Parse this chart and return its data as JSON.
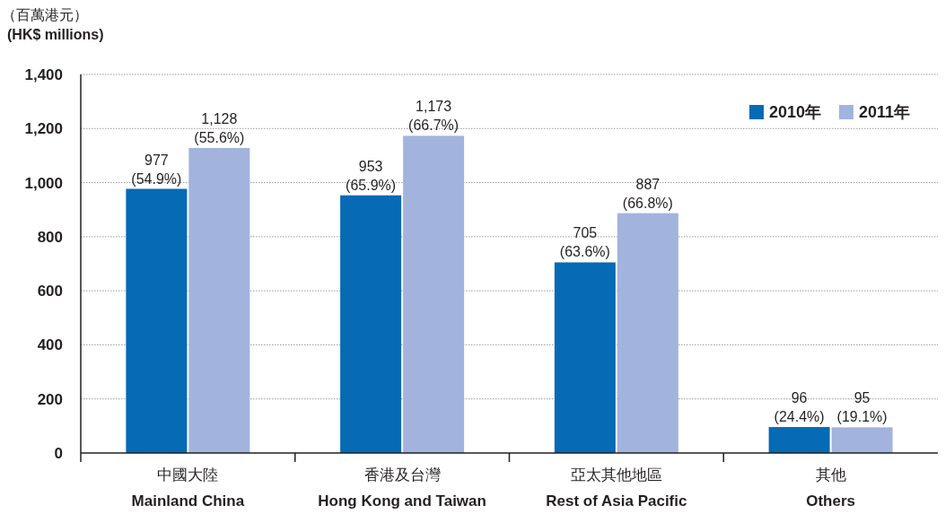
{
  "chart_data": {
    "type": "bar",
    "ylabel": "（百萬港元）\n(HK$ millions)",
    "categories": [
      "中國大陸\nMainland China",
      "香港及台灣\nHong Kong and Taiwan",
      "亞太其他地區\nRest of Asia Pacific",
      "其他\nOthers"
    ],
    "series": [
      {
        "name": "2010年",
        "color": "#066ab5",
        "values": [
          977,
          953,
          705,
          96
        ],
        "value_labels": [
          "977\n(54.9%)",
          "953\n(65.9%)",
          "705\n(63.6%)",
          "96\n(24.4%)"
        ]
      },
      {
        "name": "2011年",
        "color": "#a2b4dd",
        "values": [
          1128,
          1173,
          887,
          95
        ],
        "value_labels": [
          "1,128\n(55.6%)",
          "1,173\n(66.7%)",
          "887\n(66.8%)",
          "95\n(19.1%)"
        ]
      }
    ],
    "ylim": [
      0,
      1400
    ],
    "yticks": [
      {
        "value": 0,
        "label": "0"
      },
      {
        "value": 200,
        "label": "200"
      },
      {
        "value": 400,
        "label": "400"
      },
      {
        "value": 600,
        "label": "600"
      },
      {
        "value": 800,
        "label": "800"
      },
      {
        "value": 1000,
        "label": "1,000"
      },
      {
        "value": 1200,
        "label": "1,200"
      },
      {
        "value": 1400,
        "label": "1,400"
      }
    ],
    "grid": "y",
    "legend": "top right"
  }
}
